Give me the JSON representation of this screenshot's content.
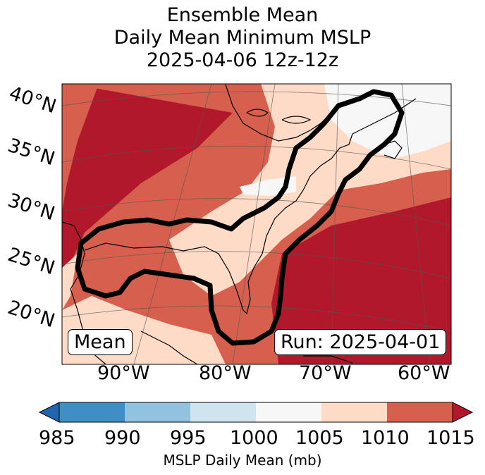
{
  "title": {
    "line1": "Ensemble Mean",
    "line2": "Daily Mean Minimum MSLP",
    "line3": "2025-04-06 12z-12z"
  },
  "map": {
    "lat_labels": [
      "40°N",
      "35°N",
      "30°N",
      "25°N",
      "20°N"
    ],
    "lon_labels": [
      "90°W",
      "80°W",
      "70°W",
      "60°W"
    ],
    "label_left": "Mean",
    "label_right": "Run: 2025-04-01",
    "colors": {
      "c985": "#2166ac",
      "c990": "#3f8fc4",
      "c995": "#91c3de",
      "c1000": "#cfe4ef",
      "c1005": "#f7f7f7",
      "c1010": "#fddbc7",
      "c1015": "#d6604d",
      "cover": "#b2182b",
      "contour": "#000000"
    }
  },
  "colorbar": {
    "ticks": [
      "985",
      "990",
      "995",
      "1000",
      "1005",
      "1010",
      "1015"
    ],
    "label": "MSLP Daily Mean (mb)"
  }
}
